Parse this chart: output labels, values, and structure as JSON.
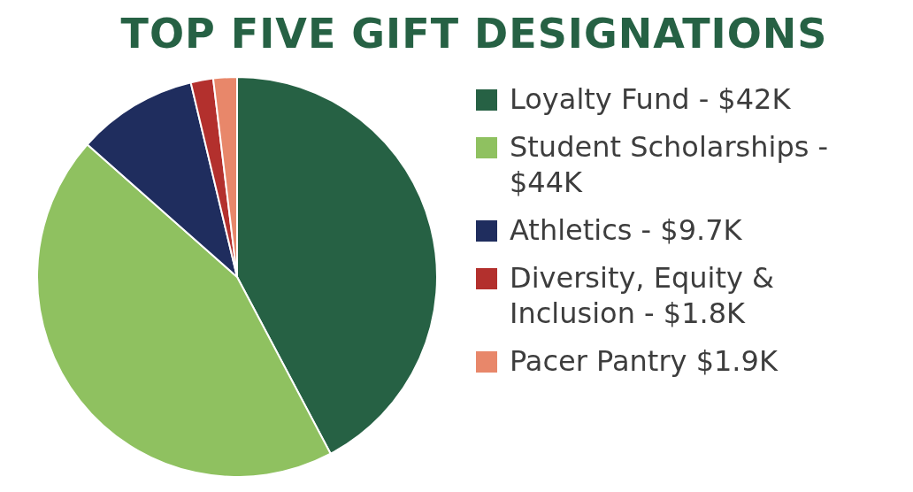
{
  "chart_data": {
    "type": "pie",
    "title": "TOP FIVE GIFT DESIGNATIONS",
    "categories": [
      "Loyalty Fund - $42K",
      "Student Scholarships - $44K",
      "Athletics - $9.7K",
      "Diversity, Equity & Inclusion - $1.8K",
      "Pacer Pantry $1.9K"
    ],
    "values": [
      42,
      44,
      9.7,
      1.8,
      1.9
    ],
    "colors": [
      "#266144",
      "#8fc160",
      "#1f2d5e",
      "#b3302d",
      "#e8876a"
    ],
    "legend": "right"
  }
}
